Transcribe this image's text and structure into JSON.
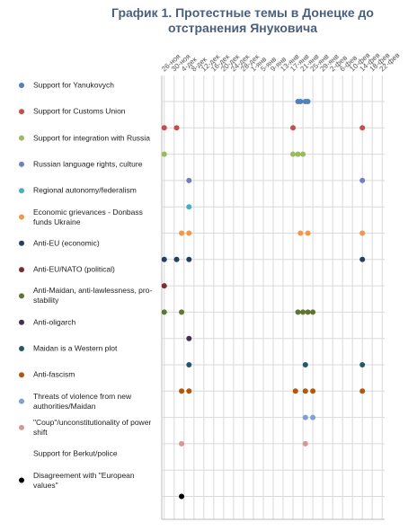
{
  "chart_data": {
    "type": "dot-timeline",
    "title": "График 1. Протестные темы в Донецке до отстранения Януковича",
    "xlim": [
      -1,
      89
    ],
    "xticks": [
      {
        "value": 0,
        "label": "26-ноя"
      },
      {
        "value": 4,
        "label": "30-ноя"
      },
      {
        "value": 8,
        "label": "4-дек"
      },
      {
        "value": 12,
        "label": "8-дек"
      },
      {
        "value": 16,
        "label": "12-дек"
      },
      {
        "value": 20,
        "label": "16-дек"
      },
      {
        "value": 24,
        "label": "20-дек"
      },
      {
        "value": 28,
        "label": "24-дек"
      },
      {
        "value": 32,
        "label": "28-дек"
      },
      {
        "value": 36,
        "label": "1-янв"
      },
      {
        "value": 40,
        "label": "5-янв"
      },
      {
        "value": 44,
        "label": "9-янв"
      },
      {
        "value": 48,
        "label": "13-янв"
      },
      {
        "value": 52,
        "label": "17-янв"
      },
      {
        "value": 56,
        "label": "21-янв"
      },
      {
        "value": 60,
        "label": "25-янв"
      },
      {
        "value": 64,
        "label": "29-янв"
      },
      {
        "value": 68,
        "label": "2-фев"
      },
      {
        "value": 72,
        "label": "6-фев"
      },
      {
        "value": 76,
        "label": "10-фев"
      },
      {
        "value": 80,
        "label": "14-фев"
      },
      {
        "value": 84,
        "label": "18-фев"
      },
      {
        "value": 88,
        "label": "22-фев"
      }
    ],
    "grid": true,
    "series": [
      {
        "name": "Support for Yanukovych",
        "color": "#4f81bd",
        "x": [
          54,
          55,
          57,
          58
        ]
      },
      {
        "name": "Support for Customs Union",
        "color": "#c0504d",
        "x": [
          0,
          5,
          52,
          80
        ]
      },
      {
        "name": "Support for integration with Russia",
        "color": "#9bbb59",
        "x": [
          0,
          52,
          54,
          56
        ]
      },
      {
        "name": "Russian language rights, culture",
        "color": "#6f7fbf",
        "x": [
          10,
          80
        ]
      },
      {
        "name": "Regional autonomy/federalism",
        "color": "#4bacc6",
        "x": [
          10
        ]
      },
      {
        "name": "Economic grievances - Donbass funds Ukraine",
        "color": "#f79646",
        "x": [
          7,
          10,
          55,
          58,
          80
        ]
      },
      {
        "name": "Anti-EU (economic)",
        "color": "#243f60",
        "x": [
          0,
          5,
          10,
          80
        ]
      },
      {
        "name": "Anti-EU/NATO (political)",
        "color": "#7b2c2c",
        "x": [
          0
        ]
      },
      {
        "name": "Anti-Maidan, anti-lawlessness, pro-stability",
        "color": "#5f7530",
        "x": [
          0,
          7,
          54,
          56,
          58,
          60
        ]
      },
      {
        "name": "Anti-oligarch",
        "color": "#3f3151",
        "x": [
          10
        ]
      },
      {
        "name": "Maidan is a Western plot",
        "color": "#215968",
        "x": [
          10,
          57,
          80
        ]
      },
      {
        "name": "Anti-fascism",
        "color": "#b65708",
        "x": [
          7,
          10,
          53,
          57,
          60,
          80
        ]
      },
      {
        "name": "Threats of violence from new authorities/Maidan",
        "color": "#7f9fd3",
        "x": [
          57,
          60
        ]
      },
      {
        "name": "\"Coup\"/unconstitutionality of power shift",
        "color": "#d99694",
        "x": [
          7,
          57
        ]
      },
      {
        "name": "Support for Berkut/police",
        "x": []
      },
      {
        "name": "Disagreement with \"European values\"",
        "color": "#000000",
        "x": [
          7
        ]
      }
    ]
  }
}
